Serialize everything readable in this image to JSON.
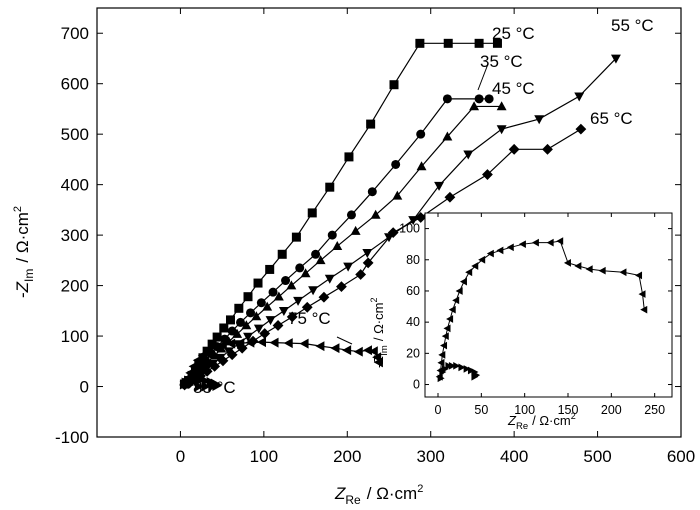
{
  "chart_data": [
    {
      "type": "scatter",
      "panel": "main",
      "xlabel": {
        "symbol": "Z",
        "sub": "Re",
        "unit": "Ω·cm",
        "sup": "2"
      },
      "ylabel": {
        "prefix": "-",
        "symbol": "Z",
        "sub": "Im",
        "unit": "Ω·cm",
        "sup": "2"
      },
      "xlim": [
        -100,
        600
      ],
      "ylim": [
        -100,
        750
      ],
      "xticks": [
        "0",
        "100",
        "200",
        "300",
        "400",
        "500",
        "600"
      ],
      "yticks": [
        "-100",
        "0",
        "100",
        "200",
        "300",
        "400",
        "500",
        "600",
        "700"
      ],
      "grid": false,
      "series": [
        {
          "label": "25 °C",
          "marker": "square",
          "x": [
            5,
            10,
            14,
            18,
            22,
            27,
            32,
            38,
            44,
            52,
            60,
            70,
            81,
            93,
            107,
            122,
            139,
            158,
            179,
            202,
            228,
            256,
            287,
            321,
            358,
            380
          ],
          "y": [
            5,
            12,
            22,
            33,
            45,
            57,
            70,
            84,
            98,
            116,
            132,
            155,
            178,
            205,
            232,
            262,
            296,
            344,
            395,
            455,
            520,
            598,
            680,
            680,
            680,
            680
          ]
        },
        {
          "label": "35 °C",
          "marker": "circle",
          "x": [
            5,
            10,
            14,
            19,
            24,
            30,
            37,
            44,
            53,
            62,
            72,
            84,
            97,
            111,
            126,
            143,
            162,
            182,
            205,
            230,
            258,
            288,
            320,
            358,
            370
          ],
          "y": [
            4,
            10,
            19,
            29,
            40,
            52,
            65,
            79,
            94,
            110,
            127,
            146,
            166,
            187,
            210,
            235,
            262,
            300,
            340,
            386,
            440,
            500,
            570,
            570,
            570
          ]
        },
        {
          "label": "45 °C",
          "marker": "triangle-up",
          "x": [
            5,
            10,
            15,
            20,
            26,
            33,
            41,
            49,
            58,
            68,
            79,
            91,
            104,
            118,
            133,
            150,
            168,
            188,
            210,
            234,
            260,
            289,
            320,
            352,
            385
          ],
          "y": [
            4,
            9,
            17,
            27,
            38,
            49,
            61,
            75,
            89,
            104,
            121,
            139,
            158,
            178,
            200,
            224,
            250,
            278,
            308,
            340,
            378,
            436,
            495,
            555,
            555
          ]
        },
        {
          "label": "55 °C",
          "marker": "triangle-down",
          "x": [
            5,
            11,
            17,
            24,
            31,
            39,
            48,
            58,
            69,
            81,
            94,
            108,
            124,
            141,
            159,
            179,
            201,
            224,
            250,
            279,
            310,
            345,
            385,
            430,
            478,
            522
          ],
          "y": [
            3,
            8,
            15,
            24,
            34,
            45,
            57,
            70,
            84,
            99,
            115,
            132,
            150,
            170,
            191,
            214,
            238,
            265,
            296,
            330,
            398,
            460,
            510,
            530,
            575,
            650
          ]
        },
        {
          "label": "65 °C",
          "marker": "diamond",
          "x": [
            5,
            11,
            17,
            24,
            32,
            41,
            51,
            62,
            74,
            87,
            101,
            117,
            134,
            152,
            172,
            193,
            216,
            225,
            255,
            288,
            323,
            368,
            400,
            440,
            480
          ],
          "y": [
            3,
            7,
            13,
            21,
            30,
            40,
            51,
            63,
            76,
            90,
            105,
            121,
            138,
            157,
            177,
            198,
            222,
            245,
            305,
            335,
            375,
            420,
            470,
            470,
            510
          ]
        },
        {
          "label": "75 °C",
          "marker": "triangle-left",
          "x": [
            5,
            8,
            12,
            16,
            21,
            27,
            34,
            42,
            51,
            61,
            72,
            84,
            98,
            113,
            130,
            149,
            168,
            186,
            200,
            214,
            225,
            232,
            236,
            238,
            238
          ],
          "y": [
            5,
            15,
            27,
            40,
            52,
            62,
            70,
            77,
            82,
            85,
            86,
            87,
            88,
            87,
            86,
            85,
            80,
            76,
            72,
            69,
            72,
            70,
            58,
            48,
            48
          ]
        },
        {
          "label": "85 °C",
          "marker": "triangle-right",
          "x": [
            4,
            6,
            9,
            13,
            18,
            24,
            30,
            36,
            41,
            44,
            43,
            38,
            30,
            22
          ],
          "y": [
            4,
            8,
            12,
            14,
            14,
            13,
            11,
            9,
            6,
            3,
            1,
            0,
            0,
            0
          ]
        }
      ],
      "annotations": [
        {
          "text": "25 °C"
        },
        {
          "text": "35 °C"
        },
        {
          "text": "45 °C"
        },
        {
          "text": "55 °C"
        },
        {
          "text": "65 °C"
        },
        {
          "text": "75 °C"
        },
        {
          "text": "85 °C"
        }
      ]
    },
    {
      "type": "scatter",
      "panel": "inset",
      "xlabel": {
        "symbol": "Z",
        "sub": "Re",
        "unit": "Ω·cm",
        "sup": "2"
      },
      "ylabel": {
        "prefix": "-",
        "symbol": "Z",
        "sub": "Im",
        "unit": "Ω·cm",
        "sup": "2"
      },
      "xlim": [
        -15,
        270
      ],
      "ylim": [
        -8,
        110
      ],
      "xticks": [
        "0",
        "50",
        "100",
        "150",
        "200",
        "250"
      ],
      "yticks": [
        "0",
        "20",
        "40",
        "60",
        "80",
        "100"
      ],
      "grid": false,
      "series": [
        {
          "label": "75 °C",
          "marker": "triangle-left",
          "x": [
            2,
            3,
            4,
            5,
            7,
            9,
            11,
            14,
            17,
            21,
            25,
            30,
            36,
            43,
            51,
            61,
            72,
            84,
            98,
            113,
            130,
            141,
            150,
            162,
            175,
            190,
            214,
            232,
            236,
            238
          ],
          "y": [
            5,
            9,
            14,
            19,
            25,
            31,
            36,
            42,
            48,
            54,
            60,
            66,
            72,
            76,
            80,
            84,
            86,
            88,
            90,
            91,
            91,
            92,
            78,
            76,
            74,
            73,
            72,
            70,
            58,
            48
          ]
        },
        {
          "label": "85 °C",
          "marker": "triangle-right",
          "x": [
            3,
            5,
            8,
            12,
            16,
            21,
            27,
            33,
            38,
            42,
            44,
            42
          ],
          "y": [
            4,
            8,
            10,
            12,
            12,
            12,
            11,
            10,
            9,
            8,
            6,
            5
          ]
        }
      ]
    }
  ],
  "colors": {
    "ink": "#000000",
    "background": "#ffffff"
  }
}
